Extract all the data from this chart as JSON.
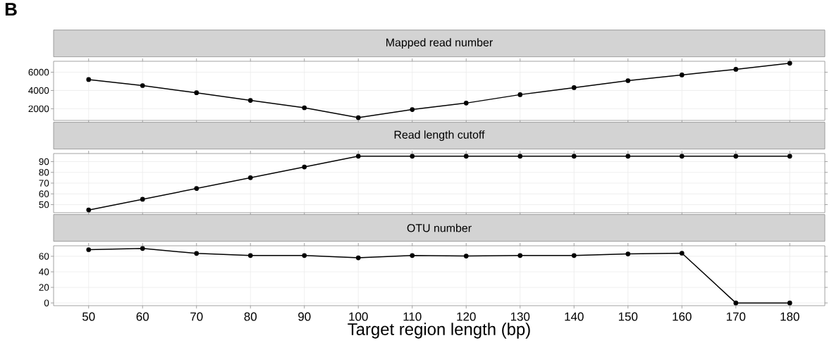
{
  "chart_data": [
    {
      "type": "line",
      "title": "Mapped read number",
      "annotations": [
        "B"
      ],
      "x": [
        50,
        60,
        70,
        80,
        90,
        100,
        110,
        120,
        130,
        140,
        150,
        160,
        170,
        180
      ],
      "series": [
        {
          "color": "#000000",
          "values": [
            5200,
            4540,
            3750,
            2910,
            2110,
            1020,
            1910,
            2620,
            3545,
            4310,
            5080,
            5700,
            6320,
            6980
          ]
        }
      ],
      "xlim": [
        43.5,
        186.5
      ],
      "xticks": [
        50,
        60,
        70,
        80,
        90,
        100,
        110,
        120,
        130,
        140,
        150,
        160,
        170,
        180
      ],
      "ylim": [
        720,
        7200
      ],
      "yticks": [
        2000,
        4000,
        6000
      ],
      "tick_labels": "y",
      "grid": true,
      "marker": "circle",
      "line_style": "solid"
    },
    {
      "type": "line",
      "title": "Read length cutoff",
      "x": [
        50,
        60,
        70,
        80,
        90,
        100,
        110,
        120,
        130,
        140,
        150,
        160,
        170,
        180
      ],
      "series": [
        {
          "color": "#000000",
          "values": [
            45,
            55,
            65,
            75,
            85,
            95,
            95,
            95,
            95,
            95,
            95,
            95,
            95,
            95
          ]
        }
      ],
      "xlim": [
        43.5,
        186.5
      ],
      "xticks": [
        50,
        60,
        70,
        80,
        90,
        100,
        110,
        120,
        130,
        140,
        150,
        160,
        170,
        180
      ],
      "ylim": [
        42.5,
        97.5
      ],
      "yticks": [
        50,
        60,
        70,
        80,
        90
      ],
      "tick_labels": "y",
      "grid": true,
      "marker": "circle",
      "line_style": "solid"
    },
    {
      "type": "line",
      "title": "OTU number",
      "xlabel": "Target region length (bp)",
      "x": [
        50,
        60,
        70,
        80,
        90,
        100,
        110,
        120,
        130,
        140,
        150,
        160,
        170,
        180
      ],
      "series": [
        {
          "color": "#000000",
          "values": [
            68.5,
            70,
            63.7,
            61,
            61,
            58,
            61,
            60.3,
            61,
            61,
            63,
            64,
            0,
            0
          ]
        }
      ],
      "xlim": [
        43.5,
        186.5
      ],
      "xticks": [
        50,
        60,
        70,
        80,
        90,
        100,
        110,
        120,
        130,
        140,
        150,
        160,
        170,
        180
      ],
      "ylim": [
        -3.5,
        73.5
      ],
      "yticks": [
        0,
        20,
        40,
        60
      ],
      "grid": true,
      "marker": "circle",
      "line_style": "solid"
    }
  ]
}
